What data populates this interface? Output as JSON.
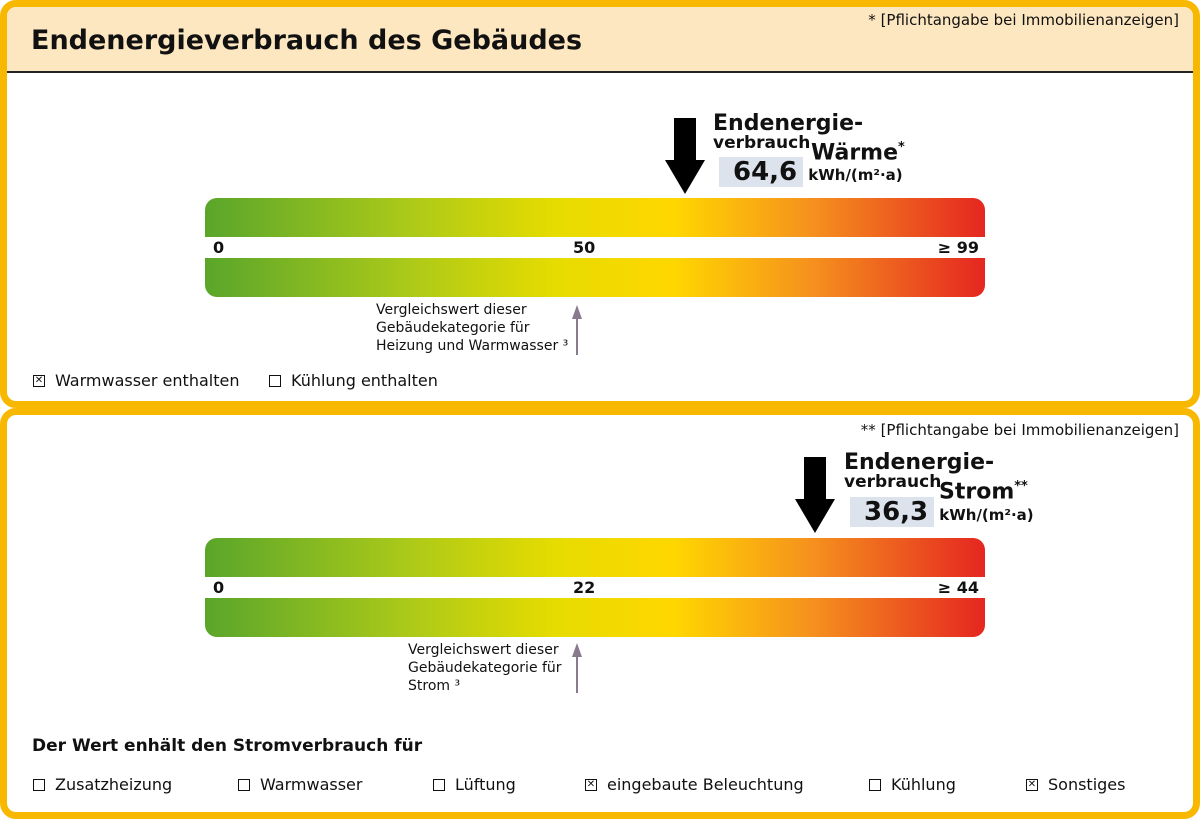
{
  "title": "Endenergieverbrauch des Gebäudes",
  "section1": {
    "note": "* [Pflichtangabe bei Immobilienanzeigen]",
    "label_line1": "Endenergie-",
    "label_line2": "verbrauch",
    "label_kind": "Wärme",
    "label_mark": "*",
    "value": "64,6",
    "value_numeric": 64.6,
    "unit": "kWh/(m²·a)",
    "scale": {
      "min": "0",
      "mid": "50",
      "max": "≥ 99",
      "max_numeric": 99
    },
    "comparison": [
      "Vergleichswert dieser",
      "Gebäudekategorie für",
      "Heizung und Warmwasser ³"
    ],
    "checkboxes": [
      {
        "label": "Warmwasser enthalten",
        "checked": true
      },
      {
        "label": "Kühlung enthalten",
        "checked": false
      }
    ]
  },
  "section2": {
    "note": "** [Pflichtangabe bei Immobilienanzeigen]",
    "label_line1": "Endenergie-",
    "label_line2": "verbrauch",
    "label_kind": "Strom",
    "label_mark": "**",
    "value": "36,3",
    "value_numeric": 36.3,
    "unit": "kWh/(m²·a)",
    "scale": {
      "min": "0",
      "mid": "22",
      "max": "≥ 44",
      "max_numeric": 44
    },
    "comparison": [
      "Vergleichswert dieser",
      "Gebäudekategorie für",
      "Strom ³"
    ],
    "heading": "Der Wert enhält den Stromverbrauch für",
    "checkboxes": [
      {
        "label": "Zusatzheizung",
        "checked": false
      },
      {
        "label": "Warmwasser",
        "checked": false
      },
      {
        "label": "Lüftung",
        "checked": false
      },
      {
        "label": "eingebaute Beleuchtung",
        "checked": true
      },
      {
        "label": "Kühlung",
        "checked": false
      },
      {
        "label": "Sonstiges",
        "checked": true
      }
    ]
  }
}
